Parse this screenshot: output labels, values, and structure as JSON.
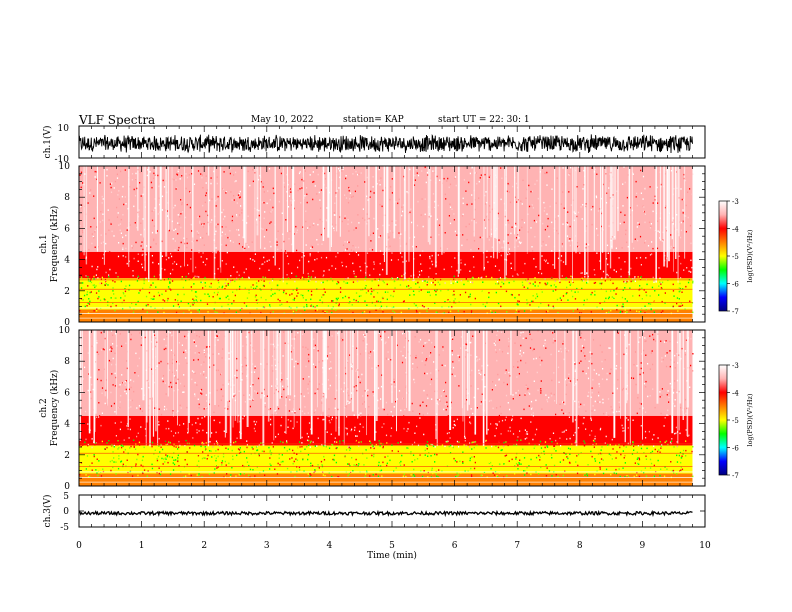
{
  "header": {
    "title": "VLF Spectra",
    "date": "May 10, 2022",
    "station": "station= KAP",
    "start": "start  UT  =   22: 30: 1"
  },
  "colors": {
    "scale": [
      "#000080",
      "#0000ff",
      "#00ffff",
      "#00ff00",
      "#ffff00",
      "#ff8000",
      "#ff0000",
      "#ffb3b3",
      "#ffffff"
    ],
    "trace": "#000000"
  },
  "chart_data": [
    {
      "type": "line",
      "ylabel": "ch.1(V)",
      "ylim": [
        -10,
        10
      ],
      "yticks": [
        "10",
        "-10"
      ],
      "xlim": [
        0,
        10
      ],
      "description_values": {
        "center": -1,
        "amplitude": 6,
        "duration_min": 9.8
      }
    },
    {
      "type": "heatmap",
      "ylabel": "ch.1",
      "ylabel2": "Frequency  (kHz)",
      "ylim": [
        0,
        10
      ],
      "yticks": [
        "0",
        "2",
        "4",
        "6",
        "8",
        "10"
      ],
      "xlim": [
        0,
        10
      ],
      "data_xmax": 9.8,
      "colorbar": {
        "ticks": [
          "-3",
          "-4",
          "-5",
          "-6",
          "-7"
        ],
        "range": [
          -7,
          -3
        ],
        "label": "log(PSD)(V²/Hz)"
      },
      "band_levels": [
        {
          "f": [
            0,
            0.8
          ],
          "level": -4.3
        },
        {
          "f": [
            0.8,
            2.8
          ],
          "level": -4.9
        },
        {
          "f": [
            2.8,
            4.5
          ],
          "level": -4.0
        },
        {
          "f": [
            4.5,
            10
          ],
          "level": -3.6
        }
      ]
    },
    {
      "type": "heatmap",
      "ylabel": "ch.2",
      "ylabel2": "Frequency  (kHz)",
      "ylim": [
        0,
        10
      ],
      "yticks": [
        "0",
        "2",
        "4",
        "6",
        "8",
        "10"
      ],
      "xlim": [
        0,
        10
      ],
      "data_xmax": 9.8,
      "colorbar": {
        "ticks": [
          "-3",
          "-4",
          "-5",
          "-6",
          "-7"
        ],
        "range": [
          -7,
          -3
        ],
        "label": "log(PSD)(V²/Hz)"
      },
      "band_levels": [
        {
          "f": [
            0,
            0.8
          ],
          "level": -4.3
        },
        {
          "f": [
            0.8,
            2.6
          ],
          "level": -4.9
        },
        {
          "f": [
            2.6,
            4.5
          ],
          "level": -4.0
        },
        {
          "f": [
            4.5,
            10
          ],
          "level": -3.6
        }
      ]
    },
    {
      "type": "line",
      "ylabel": "ch.3(V)",
      "ylim": [
        -5,
        5
      ],
      "yticks": [
        "5",
        "0",
        "-5"
      ],
      "xlim": [
        0,
        10
      ],
      "xticks": [
        "0",
        "1",
        "2",
        "3",
        "4",
        "5",
        "6",
        "7",
        "8",
        "9",
        "10"
      ],
      "xlabel": "Time  (min)",
      "description_values": {
        "center": -0.7,
        "amplitude": 0.5,
        "duration_min": 9.8
      }
    }
  ]
}
